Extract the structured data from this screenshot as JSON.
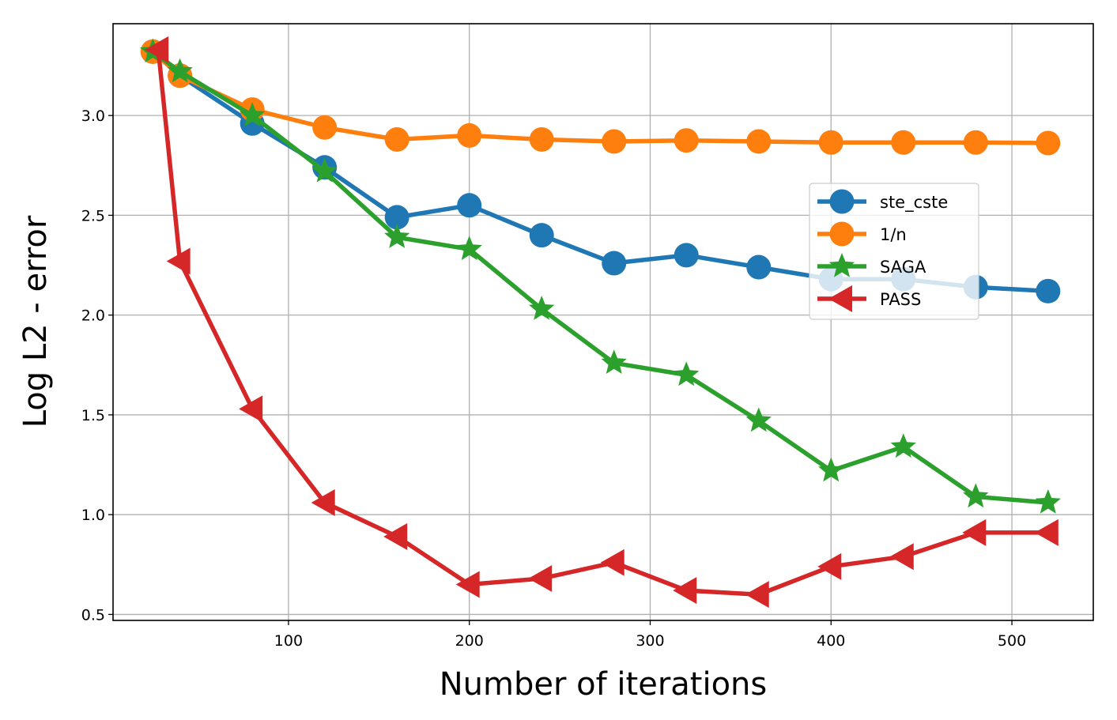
{
  "chart_data": {
    "type": "line",
    "xlabel": "Number of iterations",
    "ylabel": "Log L2 - error",
    "xlim": [
      3,
      545
    ],
    "ylim": [
      0.47,
      3.46
    ],
    "xticks": [
      100,
      200,
      300,
      400,
      500
    ],
    "xtick_labels": [
      "100",
      "200",
      "300",
      "400",
      "500"
    ],
    "yticks": [
      0.5,
      1.0,
      1.5,
      2.0,
      2.5,
      3.0
    ],
    "ytick_labels": [
      "0.5",
      "1.0",
      "1.5",
      "2.0",
      "2.5",
      "3.0"
    ],
    "grid": true,
    "legend_position": "center-right",
    "series": [
      {
        "name": "ste_cste",
        "color": "#1f77b4",
        "marker": "circle",
        "x": [
          25,
          40,
          80,
          120,
          160,
          200,
          240,
          280,
          320,
          360,
          400,
          440,
          480,
          520
        ],
        "y": [
          3.32,
          3.2,
          2.96,
          2.74,
          2.49,
          2.55,
          2.4,
          2.26,
          2.3,
          2.24,
          2.18,
          2.18,
          2.14,
          2.12
        ]
      },
      {
        "name": "1/n",
        "color": "#ff7f0e",
        "marker": "circle",
        "x": [
          25,
          40,
          80,
          120,
          160,
          200,
          240,
          280,
          320,
          360,
          400,
          440,
          480,
          520
        ],
        "y": [
          3.32,
          3.2,
          3.03,
          2.94,
          2.88,
          2.9,
          2.88,
          2.87,
          2.875,
          2.87,
          2.865,
          2.865,
          2.865,
          2.862
        ]
      },
      {
        "name": "SAGA",
        "color": "#2ca02c",
        "marker": "star",
        "x": [
          25,
          40,
          80,
          120,
          160,
          200,
          240,
          280,
          320,
          360,
          400,
          440,
          480,
          520
        ],
        "y": [
          3.32,
          3.22,
          3.0,
          2.72,
          2.39,
          2.33,
          2.03,
          1.76,
          1.7,
          1.47,
          1.22,
          1.34,
          1.09,
          1.06
        ]
      },
      {
        "name": "PASS",
        "color": "#d62728",
        "marker": "triangle-left",
        "x": [
          28,
          40,
          80,
          120,
          160,
          200,
          240,
          280,
          320,
          360,
          400,
          440,
          480,
          520
        ],
        "y": [
          3.33,
          2.27,
          1.53,
          1.06,
          0.89,
          0.65,
          0.68,
          0.76,
          0.62,
          0.6,
          0.74,
          0.79,
          0.91,
          0.91
        ]
      }
    ]
  }
}
